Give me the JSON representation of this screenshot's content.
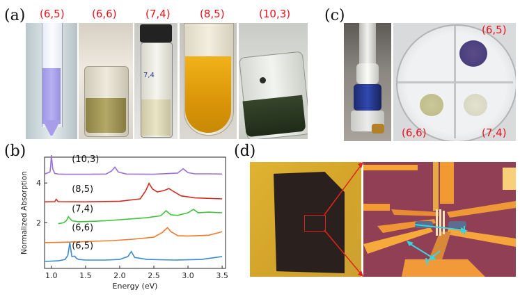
{
  "panels": {
    "a": "(a)",
    "b": "(b)",
    "c": "(c)",
    "d": "(d)"
  },
  "panel_a": {
    "labels": [
      "(6,5)",
      "(6,6)",
      "(7,4)",
      "(8,5)",
      "(10,3)"
    ],
    "vial_label": "7,4"
  },
  "panel_c": {
    "labels": [
      "(6,5)",
      "(6,6)",
      "(7,4)"
    ]
  },
  "colors": {
    "label_red": "#e8101a"
  },
  "chart_data": {
    "type": "line",
    "xlabel": "Energy (eV)",
    "ylabel": "Normalized Absorption",
    "xlim": [
      0.9,
      3.55
    ],
    "ylim": [
      -0.3,
      5.3
    ],
    "xticks": [
      1.0,
      1.5,
      2.0,
      2.5,
      3.0,
      3.5
    ],
    "yticks": [
      2,
      4
    ],
    "grid": false,
    "legend": "none",
    "series": [
      {
        "name": "(10,3)",
        "color": "#9b6fd6",
        "offset": 4.4,
        "x": [
          0.9,
          0.98,
          0.99,
          1.0,
          1.02,
          1.05,
          1.1,
          1.2,
          1.5,
          1.8,
          1.88,
          1.93,
          1.98,
          2.1,
          2.5,
          2.85,
          2.93,
          3.0,
          3.1,
          3.3,
          3.5
        ],
        "y": [
          0.05,
          0.15,
          0.45,
          1.0,
          0.3,
          0.08,
          0.05,
          0.04,
          0.04,
          0.05,
          0.2,
          0.4,
          0.15,
          0.05,
          0.04,
          0.1,
          0.32,
          0.12,
          0.06,
          0.06,
          0.05
        ]
      },
      {
        "name": "(8,5)",
        "color": "#d42a1e",
        "offset": 3.0,
        "x": [
          0.9,
          1.05,
          1.07,
          1.1,
          1.5,
          2.0,
          2.3,
          2.38,
          2.43,
          2.48,
          2.55,
          2.65,
          2.72,
          2.8,
          2.9,
          3.1,
          3.5
        ],
        "y": [
          0.05,
          0.06,
          0.18,
          0.06,
          0.05,
          0.08,
          0.2,
          0.6,
          0.98,
          0.7,
          0.55,
          0.62,
          0.72,
          0.55,
          0.35,
          0.25,
          0.2
        ]
      },
      {
        "name": "(7,4)",
        "color": "#3ec23a",
        "offset": 1.95,
        "x": [
          1.1,
          1.18,
          1.22,
          1.25,
          1.3,
          1.4,
          1.6,
          1.8,
          2.0,
          2.2,
          2.4,
          2.6,
          2.68,
          2.75,
          2.85,
          3.0,
          3.08,
          3.15,
          3.3,
          3.5
        ],
        "y": [
          0.0,
          0.05,
          0.15,
          0.35,
          0.15,
          0.1,
          0.12,
          0.15,
          0.2,
          0.25,
          0.3,
          0.4,
          0.65,
          0.45,
          0.42,
          0.55,
          0.72,
          0.55,
          0.58,
          0.55
        ]
      },
      {
        "name": "(6,6)",
        "color": "#ef7a2c",
        "offset": 0.95,
        "x": [
          0.9,
          1.2,
          1.5,
          1.9,
          2.2,
          2.5,
          2.62,
          2.7,
          2.75,
          2.85,
          3.0,
          3.3,
          3.45,
          3.5
        ],
        "y": [
          0.05,
          0.07,
          0.1,
          0.15,
          0.22,
          0.32,
          0.55,
          0.8,
          0.6,
          0.4,
          0.38,
          0.42,
          0.55,
          0.6
        ]
      },
      {
        "name": "(6,5)",
        "color": "#3a8ad0",
        "offset": 0.0,
        "x": [
          0.9,
          1.1,
          1.2,
          1.24,
          1.27,
          1.3,
          1.34,
          1.37,
          1.4,
          1.5,
          1.8,
          2.0,
          2.12,
          2.17,
          2.22,
          2.4,
          2.8,
          3.2,
          3.5
        ],
        "y": [
          0.05,
          0.08,
          0.15,
          0.35,
          1.0,
          0.3,
          0.32,
          0.2,
          0.15,
          0.12,
          0.12,
          0.15,
          0.3,
          0.55,
          0.25,
          0.15,
          0.12,
          0.15,
          0.3
        ]
      }
    ],
    "annotations": [
      "(10,3)",
      "(8,5)",
      "(7,4)",
      "(6,6)",
      "(6,5)"
    ]
  }
}
